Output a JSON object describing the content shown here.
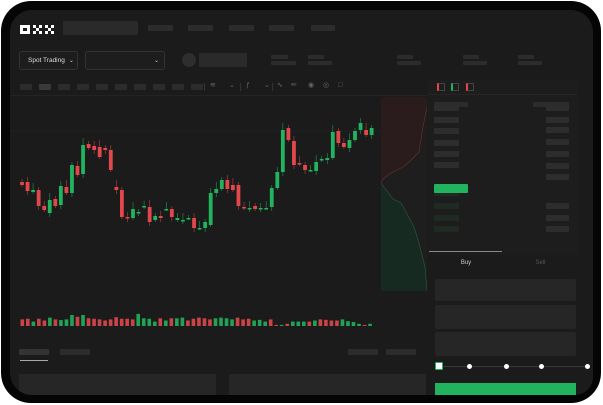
{
  "header": {
    "logo": "OKX"
  },
  "toolbar": {
    "market_select_label": "Spot Trading",
    "pair_select_label": ""
  },
  "trade_panel": {
    "tabs": [
      {
        "label": "Buy",
        "active": true
      },
      {
        "label": "Sell",
        "active": false
      }
    ],
    "slider_value_percent": 0,
    "slider_marks": [
      0,
      25,
      50,
      75,
      100
    ]
  },
  "colors": {
    "up": "#22b35e",
    "down": "#e0484c",
    "background": "#1b1b1b",
    "frame": "#050505"
  },
  "icons": [
    "chevron-down-icon",
    "camera-icon",
    "settings-icon",
    "fullscreen-icon",
    "orderbook-both-icon",
    "orderbook-bids-icon",
    "orderbook-asks-icon"
  ],
  "chart_data": {
    "type": "candlestick",
    "candles": [
      [
        58,
        55
      ],
      [
        58,
        49
      ],
      [
        48,
        50
      ],
      [
        50,
        34
      ],
      [
        34,
        30
      ],
      [
        27,
        40
      ],
      [
        41,
        34
      ],
      [
        35,
        54
      ],
      [
        53,
        47
      ],
      [
        47,
        75
      ],
      [
        74,
        65
      ],
      [
        66,
        95
      ],
      [
        96,
        92
      ],
      [
        94,
        90
      ],
      [
        93,
        83
      ],
      [
        92,
        90
      ],
      [
        90,
        70
      ],
      [
        53,
        50
      ],
      [
        50,
        23
      ],
      [
        23,
        22
      ],
      [
        22,
        31
      ],
      [
        28,
        28
      ],
      [
        33,
        34
      ],
      [
        33,
        18
      ],
      [
        20,
        24
      ],
      [
        24,
        22
      ],
      [
        31,
        31
      ],
      [
        31,
        23
      ],
      [
        20,
        22
      ],
      [
        20,
        20
      ],
      [
        22,
        22
      ],
      [
        22,
        12
      ],
      [
        12,
        12
      ],
      [
        12,
        18
      ],
      [
        15,
        47
      ],
      [
        47,
        51
      ],
      [
        51,
        60
      ],
      [
        60,
        51
      ],
      [
        55,
        50
      ],
      [
        55,
        34
      ],
      [
        33,
        32
      ],
      [
        32,
        32
      ],
      [
        34,
        31
      ],
      [
        32,
        32
      ],
      [
        32,
        32
      ],
      [
        33,
        52
      ],
      [
        52,
        68
      ],
      [
        68,
        110
      ],
      [
        112,
        100
      ],
      [
        99,
        75
      ],
      [
        77,
        76
      ],
      [
        75,
        70
      ],
      [
        70,
        70
      ],
      [
        69,
        78
      ],
      [
        80,
        81
      ],
      [
        80,
        82
      ],
      [
        82,
        108
      ],
      [
        109,
        97
      ],
      [
        97,
        93
      ],
      [
        92,
        100
      ],
      [
        100,
        109
      ],
      [
        110,
        117
      ],
      [
        110,
        105
      ],
      [
        105,
        112
      ]
    ],
    "volume": [
      [
        30,
        "d"
      ],
      [
        33,
        "d"
      ],
      [
        20,
        "u"
      ],
      [
        33,
        "d"
      ],
      [
        25,
        "d"
      ],
      [
        38,
        "u"
      ],
      [
        30,
        "d"
      ],
      [
        27,
        "u"
      ],
      [
        30,
        "u"
      ],
      [
        50,
        "u"
      ],
      [
        42,
        "d"
      ],
      [
        50,
        "u"
      ],
      [
        35,
        "d"
      ],
      [
        33,
        "d"
      ],
      [
        30,
        "d"
      ],
      [
        25,
        "d"
      ],
      [
        30,
        "d"
      ],
      [
        40,
        "d"
      ],
      [
        33,
        "d"
      ],
      [
        33,
        "d"
      ],
      [
        30,
        "d"
      ],
      [
        55,
        "u"
      ],
      [
        35,
        "u"
      ],
      [
        33,
        "u"
      ],
      [
        20,
        "u"
      ],
      [
        35,
        "d"
      ],
      [
        25,
        "u"
      ],
      [
        35,
        "d"
      ],
      [
        35,
        "u"
      ],
      [
        38,
        "u"
      ],
      [
        25,
        "d"
      ],
      [
        33,
        "d"
      ],
      [
        38,
        "d"
      ],
      [
        35,
        "d"
      ],
      [
        30,
        "d"
      ],
      [
        35,
        "u"
      ],
      [
        38,
        "u"
      ],
      [
        35,
        "u"
      ],
      [
        30,
        "u"
      ],
      [
        38,
        "d"
      ],
      [
        30,
        "d"
      ],
      [
        33,
        "d"
      ],
      [
        25,
        "u"
      ],
      [
        28,
        "u"
      ],
      [
        20,
        "u"
      ],
      [
        30,
        "d"
      ],
      [
        5,
        "d"
      ],
      [
        5,
        "u"
      ],
      [
        10,
        "d"
      ],
      [
        20,
        "u"
      ],
      [
        20,
        "u"
      ],
      [
        20,
        "u"
      ],
      [
        20,
        "d"
      ],
      [
        25,
        "u"
      ],
      [
        30,
        "d"
      ],
      [
        28,
        "d"
      ],
      [
        25,
        "d"
      ],
      [
        25,
        "d"
      ],
      [
        30,
        "u"
      ],
      [
        22,
        "u"
      ],
      [
        18,
        "u"
      ],
      [
        10,
        "u"
      ],
      [
        5,
        "d"
      ],
      [
        10,
        "u"
      ]
    ]
  }
}
